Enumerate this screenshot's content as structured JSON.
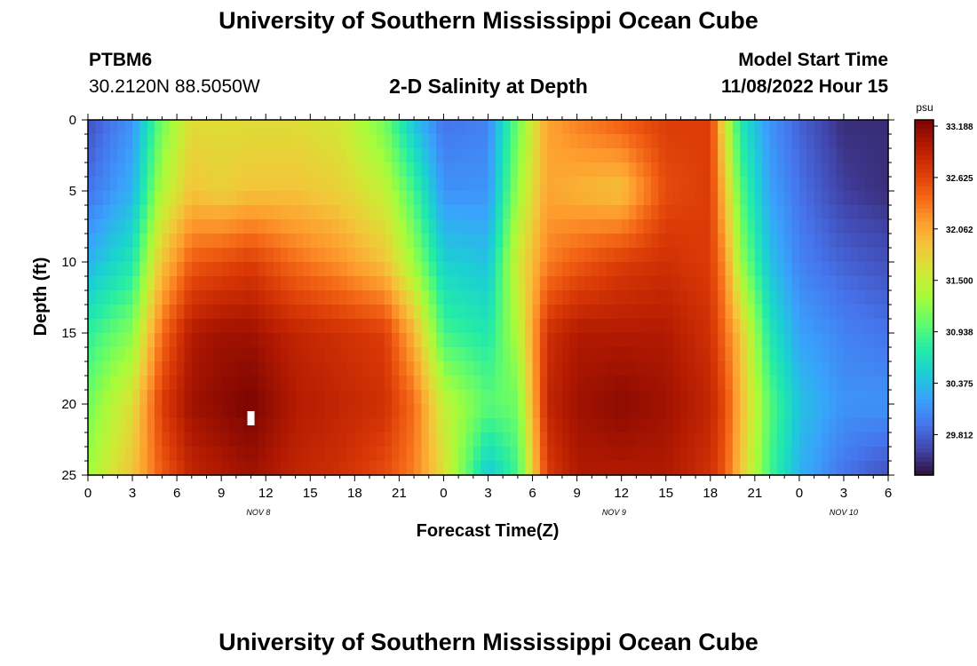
{
  "header": {
    "title": "University of Southern Mississippi Ocean Cube",
    "station_id": "PTBM6",
    "coordinates": "30.2120N  88.5050W",
    "subtitle": "2-D Salinity at Depth",
    "start_label": "Model Start Time",
    "start_value": "11/08/2022 Hour 15"
  },
  "footer": {
    "title": "University of Southern Mississippi Ocean Cube"
  },
  "chart_data": {
    "type": "heatmap",
    "title": "2-D Salinity at Depth",
    "xlabel": "Forecast Time(Z)",
    "ylabel": "Depth (ft)",
    "x_range_hours": [
      0,
      54
    ],
    "y_range_ft": [
      0,
      25
    ],
    "x_tick_labels": [
      "0",
      "3",
      "6",
      "9",
      "12",
      "15",
      "18",
      "21",
      "0",
      "3",
      "6",
      "9",
      "12",
      "15",
      "18",
      "21",
      "0",
      "3",
      "6"
    ],
    "y_ticks": [
      0,
      5,
      10,
      15,
      20,
      25
    ],
    "day_labels": [
      {
        "text": "NOV 8",
        "hour": 11.5
      },
      {
        "text": "NOV 9",
        "hour": 35.5
      },
      {
        "text": "NOV 10",
        "hour": 51
      }
    ],
    "colorbar": {
      "unit": "psu",
      "min": 29.25,
      "max": 33.188,
      "tick_labels": [
        "33.188",
        "32.625",
        "32.062",
        "31.500",
        "30.938",
        "30.375",
        "29.812"
      ],
      "colors": [
        "#30123b",
        "#4145ab",
        "#4675ed",
        "#39a2fc",
        "#1bcfd4",
        "#24eca6",
        "#61fc6c",
        "#a4fc3b",
        "#d1e834",
        "#f3c63a",
        "#fe9b2d",
        "#f36315",
        "#d93806",
        "#b11901",
        "#7a0402"
      ]
    },
    "salinity_profiles": {
      "description": "salinity (psu) at forecast hour vs depth samples [0, 5, 10, 15, 20, 25 ft]",
      "depths_ft": [
        0,
        5,
        10,
        15,
        20,
        25
      ],
      "hours": [
        0,
        3,
        5,
        7,
        9,
        11,
        14,
        17,
        20,
        22,
        24,
        27,
        29,
        31,
        33,
        36,
        39,
        42,
        43,
        44,
        46,
        48,
        51,
        54
      ],
      "values": [
        [
          29.6,
          29.8,
          30.2,
          30.7,
          31.0,
          31.2
        ],
        [
          30.0,
          30.2,
          30.6,
          31.1,
          31.6,
          31.8
        ],
        [
          31.0,
          31.3,
          31.8,
          32.3,
          32.6,
          32.4
        ],
        [
          31.6,
          31.8,
          32.4,
          32.9,
          33.0,
          32.8
        ],
        [
          31.6,
          31.7,
          32.5,
          33.0,
          33.1,
          32.9
        ],
        [
          31.6,
          31.8,
          32.6,
          33.0,
          33.188,
          33.0
        ],
        [
          31.6,
          31.8,
          32.3,
          32.8,
          32.9,
          32.8
        ],
        [
          31.5,
          31.7,
          32.1,
          32.7,
          32.8,
          32.7
        ],
        [
          31.0,
          31.4,
          31.8,
          32.6,
          32.7,
          32.5
        ],
        [
          30.3,
          30.8,
          31.2,
          31.9,
          32.3,
          32.2
        ],
        [
          29.8,
          30.0,
          30.4,
          30.8,
          31.4,
          31.6
        ],
        [
          29.9,
          30.0,
          30.3,
          30.6,
          30.9,
          30.3
        ],
        [
          31.0,
          31.2,
          31.5,
          31.3,
          31.0,
          30.8
        ],
        [
          32.0,
          32.0,
          32.2,
          32.7,
          32.8,
          32.6
        ],
        [
          32.2,
          31.9,
          32.4,
          32.9,
          33.0,
          32.9
        ],
        [
          32.4,
          31.8,
          32.6,
          32.9,
          33.1,
          32.9
        ],
        [
          32.6,
          32.5,
          32.7,
          32.9,
          33.0,
          32.9
        ],
        [
          32.6,
          32.6,
          32.6,
          32.7,
          32.8,
          32.7
        ],
        [
          31.5,
          31.8,
          32.1,
          32.3,
          32.5,
          32.4
        ],
        [
          30.6,
          30.9,
          31.2,
          31.8,
          31.9,
          31.8
        ],
        [
          30.0,
          30.1,
          30.3,
          30.6,
          30.9,
          30.8
        ],
        [
          29.7,
          29.8,
          29.9,
          30.1,
          30.3,
          30.2
        ],
        [
          29.4,
          29.5,
          29.7,
          29.9,
          30.0,
          29.8
        ],
        [
          29.4,
          29.4,
          29.6,
          29.8,
          30.0,
          29.6
        ]
      ]
    },
    "marker": {
      "hour": 11,
      "depth_ft": 21
    }
  }
}
